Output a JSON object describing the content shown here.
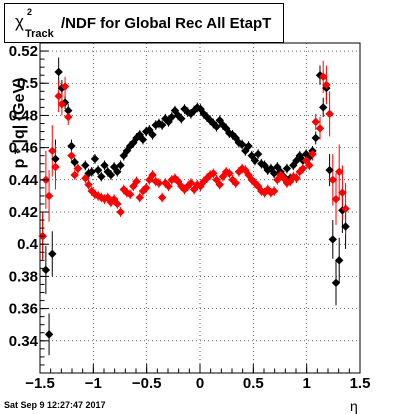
{
  "chart_data": {
    "type": "scatter",
    "title_main": "/NDF for Global Rec All EtapT",
    "title_symbol": "χ",
    "title_superscript": "2",
    "title_subscript": "Track",
    "xlabel": "η",
    "ylabel": "p * |q| (GeV)",
    "xlim": [
      -1.5,
      1.5
    ],
    "ylim": [
      0.32,
      0.525
    ],
    "xticks": [
      -1.5,
      -1,
      -0.5,
      0,
      0.5,
      1,
      1.5
    ],
    "yticks": [
      0.34,
      0.36,
      0.38,
      0.4,
      0.42,
      0.44,
      0.46,
      0.48,
      0.5,
      0.52
    ],
    "xtick_labels": [
      "−1.5",
      "−1",
      "−0.5",
      "0",
      "0.5",
      "1",
      "1.5"
    ],
    "ytick_labels": [
      "0.34",
      "0.36",
      "0.38",
      "0.4",
      "0.42",
      "0.44",
      "0.46",
      "0.48",
      "0.5",
      "0.52"
    ],
    "grid": true,
    "footer": "Sat Sep  9 12:27:47 2017",
    "series": [
      {
        "color": "#000000",
        "points": [
          [
            -1.475,
            0.405,
            0.014
          ],
          [
            -1.445,
            0.384,
            0.015
          ],
          [
            -1.415,
            0.344,
            0.013
          ],
          [
            -1.385,
            0.394,
            0.014
          ],
          [
            -1.355,
            0.453,
            0.012
          ],
          [
            -1.325,
            0.507,
            0.009
          ],
          [
            -1.295,
            0.497,
            0.005
          ],
          [
            -1.265,
            0.488,
            0.004
          ],
          [
            -1.235,
            0.483,
            0.004
          ],
          [
            -1.205,
            0.461,
            0.004
          ],
          [
            -1.175,
            0.451,
            0.003
          ],
          [
            -1.145,
            0.447,
            0.003
          ],
          [
            -1.075,
            0.449,
            0.003
          ],
          [
            -1.045,
            0.444,
            0.003
          ],
          [
            -1.015,
            0.445,
            0.003
          ],
          [
            -0.985,
            0.453,
            0.003
          ],
          [
            -0.955,
            0.446,
            0.003
          ],
          [
            -0.925,
            0.442,
            0.003
          ],
          [
            -0.895,
            0.449,
            0.003
          ],
          [
            -0.865,
            0.445,
            0.003
          ],
          [
            -0.835,
            0.443,
            0.003
          ],
          [
            -0.805,
            0.448,
            0.003
          ],
          [
            -0.775,
            0.445,
            0.003
          ],
          [
            -0.745,
            0.449,
            0.003
          ],
          [
            -0.715,
            0.455,
            0.003
          ],
          [
            -0.685,
            0.458,
            0.003
          ],
          [
            -0.655,
            0.461,
            0.003
          ],
          [
            -0.625,
            0.463,
            0.003
          ],
          [
            -0.595,
            0.466,
            0.003
          ],
          [
            -0.565,
            0.468,
            0.003
          ],
          [
            -0.535,
            0.465,
            0.003
          ],
          [
            -0.505,
            0.47,
            0.003
          ],
          [
            -0.475,
            0.471,
            0.003
          ],
          [
            -0.445,
            0.468,
            0.003
          ],
          [
            -0.415,
            0.474,
            0.003
          ],
          [
            -0.385,
            0.475,
            0.003
          ],
          [
            -0.355,
            0.474,
            0.003
          ],
          [
            -0.325,
            0.478,
            0.003
          ],
          [
            -0.295,
            0.476,
            0.003
          ],
          [
            -0.265,
            0.479,
            0.003
          ],
          [
            -0.235,
            0.483,
            0.003
          ],
          [
            -0.205,
            0.48,
            0.003
          ],
          [
            -0.175,
            0.478,
            0.003
          ],
          [
            -0.145,
            0.484,
            0.003
          ],
          [
            -0.115,
            0.482,
            0.003
          ],
          [
            -0.085,
            0.481,
            0.003
          ],
          [
            -0.055,
            0.483,
            0.003
          ],
          [
            -0.025,
            0.485,
            0.003
          ],
          [
            0.005,
            0.484,
            0.003
          ],
          [
            0.035,
            0.481,
            0.003
          ],
          [
            0.065,
            0.479,
            0.003
          ],
          [
            0.095,
            0.477,
            0.003
          ],
          [
            0.125,
            0.475,
            0.003
          ],
          [
            0.155,
            0.473,
            0.003
          ],
          [
            0.185,
            0.477,
            0.003
          ],
          [
            0.215,
            0.474,
            0.003
          ],
          [
            0.245,
            0.472,
            0.003
          ],
          [
            0.275,
            0.469,
            0.003
          ],
          [
            0.305,
            0.468,
            0.003
          ],
          [
            0.335,
            0.466,
            0.003
          ],
          [
            0.365,
            0.463,
            0.003
          ],
          [
            0.395,
            0.462,
            0.003
          ],
          [
            0.425,
            0.458,
            0.003
          ],
          [
            0.455,
            0.461,
            0.003
          ],
          [
            0.485,
            0.455,
            0.003
          ],
          [
            0.515,
            0.452,
            0.003
          ],
          [
            0.545,
            0.456,
            0.003
          ],
          [
            0.575,
            0.45,
            0.003
          ],
          [
            0.605,
            0.449,
            0.003
          ],
          [
            0.635,
            0.446,
            0.003
          ],
          [
            0.665,
            0.447,
            0.003
          ],
          [
            0.695,
            0.444,
            0.003
          ],
          [
            0.725,
            0.448,
            0.003
          ],
          [
            0.755,
            0.445,
            0.003
          ],
          [
            0.785,
            0.442,
            0.003
          ],
          [
            0.815,
            0.447,
            0.003
          ],
          [
            0.845,
            0.441,
            0.003
          ],
          [
            0.875,
            0.449,
            0.003
          ],
          [
            0.905,
            0.452,
            0.003
          ],
          [
            0.935,
            0.455,
            0.003
          ],
          [
            0.965,
            0.452,
            0.003
          ],
          [
            0.995,
            0.456,
            0.003
          ],
          [
            1.025,
            0.454,
            0.003
          ],
          [
            1.055,
            0.458,
            0.003
          ],
          [
            1.085,
            0.466,
            0.004
          ],
          [
            1.125,
            0.505,
            0.006
          ],
          [
            1.155,
            0.485,
            0.006
          ],
          [
            1.185,
            0.497,
            0.008
          ],
          [
            1.215,
            0.446,
            0.01
          ],
          [
            1.245,
            0.403,
            0.012
          ],
          [
            1.275,
            0.376,
            0.014
          ],
          [
            1.305,
            0.39,
            0.014
          ],
          [
            1.335,
            0.421,
            0.014
          ],
          [
            1.365,
            0.411,
            0.014
          ]
        ]
      },
      {
        "color": "#ff0000",
        "points": [
          [
            -1.475,
            0.405,
            0.015
          ],
          [
            -1.445,
            0.44,
            0.018
          ],
          [
            -1.415,
            0.43,
            0.016
          ],
          [
            -1.385,
            0.458,
            0.016
          ],
          [
            -1.355,
            0.448,
            0.014
          ],
          [
            -1.325,
            0.492,
            0.01
          ],
          [
            -1.295,
            0.487,
            0.007
          ],
          [
            -1.265,
            0.498,
            0.006
          ],
          [
            -1.235,
            0.479,
            0.005
          ],
          [
            -1.205,
            0.455,
            0.004
          ],
          [
            -1.175,
            0.443,
            0.003
          ],
          [
            -1.145,
            0.447,
            0.003
          ],
          [
            -1.075,
            0.441,
            0.003
          ],
          [
            -1.045,
            0.437,
            0.003
          ],
          [
            -1.015,
            0.433,
            0.003
          ],
          [
            -0.985,
            0.431,
            0.003
          ],
          [
            -0.955,
            0.43,
            0.003
          ],
          [
            -0.925,
            0.429,
            0.003
          ],
          [
            -0.895,
            0.428,
            0.003
          ],
          [
            -0.865,
            0.429,
            0.003
          ],
          [
            -0.835,
            0.426,
            0.003
          ],
          [
            -0.805,
            0.428,
            0.003
          ],
          [
            -0.775,
            0.425,
            0.003
          ],
          [
            -0.745,
            0.42,
            0.003
          ],
          [
            -0.715,
            0.434,
            0.003
          ],
          [
            -0.685,
            0.432,
            0.003
          ],
          [
            -0.655,
            0.431,
            0.003
          ],
          [
            -0.625,
            0.436,
            0.003
          ],
          [
            -0.595,
            0.439,
            0.003
          ],
          [
            -0.565,
            0.429,
            0.003
          ],
          [
            -0.535,
            0.433,
            0.003
          ],
          [
            -0.505,
            0.435,
            0.003
          ],
          [
            -0.475,
            0.44,
            0.003
          ],
          [
            -0.445,
            0.443,
            0.003
          ],
          [
            -0.415,
            0.439,
            0.003
          ],
          [
            -0.385,
            0.438,
            0.003
          ],
          [
            -0.355,
            0.429,
            0.003
          ],
          [
            -0.325,
            0.438,
            0.003
          ],
          [
            -0.295,
            0.436,
            0.003
          ],
          [
            -0.265,
            0.44,
            0.003
          ],
          [
            -0.235,
            0.441,
            0.003
          ],
          [
            -0.205,
            0.439,
            0.003
          ],
          [
            -0.175,
            0.436,
            0.003
          ],
          [
            -0.145,
            0.434,
            0.003
          ],
          [
            -0.115,
            0.436,
            0.003
          ],
          [
            -0.085,
            0.438,
            0.003
          ],
          [
            -0.055,
            0.434,
            0.003
          ],
          [
            -0.025,
            0.437,
            0.003
          ],
          [
            0.005,
            0.436,
            0.003
          ],
          [
            0.035,
            0.439,
            0.003
          ],
          [
            0.065,
            0.441,
            0.003
          ],
          [
            0.095,
            0.443,
            0.003
          ],
          [
            0.125,
            0.444,
            0.003
          ],
          [
            0.155,
            0.44,
            0.003
          ],
          [
            0.185,
            0.437,
            0.003
          ],
          [
            0.215,
            0.442,
            0.003
          ],
          [
            0.245,
            0.445,
            0.003
          ],
          [
            0.275,
            0.444,
            0.003
          ],
          [
            0.305,
            0.44,
            0.003
          ],
          [
            0.335,
            0.438,
            0.003
          ],
          [
            0.365,
            0.445,
            0.003
          ],
          [
            0.395,
            0.447,
            0.003
          ],
          [
            0.425,
            0.446,
            0.003
          ],
          [
            0.455,
            0.443,
            0.003
          ],
          [
            0.485,
            0.44,
            0.003
          ],
          [
            0.515,
            0.438,
            0.003
          ],
          [
            0.545,
            0.436,
            0.003
          ],
          [
            0.575,
            0.433,
            0.003
          ],
          [
            0.605,
            0.432,
            0.003
          ],
          [
            0.635,
            0.434,
            0.003
          ],
          [
            0.665,
            0.432,
            0.003
          ],
          [
            0.695,
            0.433,
            0.003
          ],
          [
            0.725,
            0.44,
            0.003
          ],
          [
            0.755,
            0.443,
            0.003
          ],
          [
            0.785,
            0.441,
            0.003
          ],
          [
            0.815,
            0.438,
            0.003
          ],
          [
            0.845,
            0.439,
            0.003
          ],
          [
            0.875,
            0.442,
            0.003
          ],
          [
            0.905,
            0.441,
            0.003
          ],
          [
            0.935,
            0.445,
            0.003
          ],
          [
            0.965,
            0.447,
            0.003
          ],
          [
            0.995,
            0.452,
            0.003
          ],
          [
            1.025,
            0.449,
            0.003
          ],
          [
            1.055,
            0.456,
            0.004
          ],
          [
            1.085,
            0.476,
            0.005
          ],
          [
            1.125,
            0.472,
            0.007
          ],
          [
            1.155,
            0.504,
            0.01
          ],
          [
            1.185,
            0.499,
            0.012
          ],
          [
            1.215,
            0.481,
            0.014
          ],
          [
            1.245,
            0.44,
            0.016
          ],
          [
            1.275,
            0.428,
            0.016
          ],
          [
            1.305,
            0.445,
            0.017
          ],
          [
            1.335,
            0.432,
            0.017
          ],
          [
            1.365,
            0.422,
            0.016
          ]
        ]
      }
    ]
  }
}
